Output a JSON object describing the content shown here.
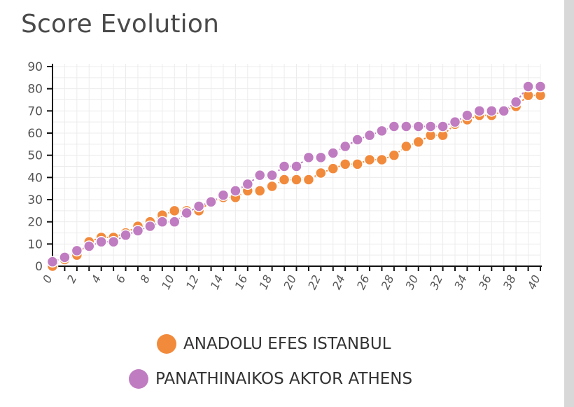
{
  "title": "Score Evolution",
  "chart_data": {
    "type": "line",
    "title": "Score Evolution",
    "xlabel": "",
    "ylabel": "",
    "xlim": [
      0,
      40
    ],
    "ylim": [
      0,
      90
    ],
    "yticks": [
      0,
      10,
      20,
      30,
      40,
      50,
      60,
      70,
      80,
      90
    ],
    "xticks": [
      0,
      2,
      4,
      6,
      8,
      10,
      12,
      14,
      16,
      18,
      20,
      22,
      24,
      26,
      28,
      30,
      32,
      34,
      36,
      38,
      40
    ],
    "grid": true,
    "legend_position": "bottom",
    "series": [
      {
        "name": "ANADOLU EFES ISTANBUL",
        "color": "#f28a3c",
        "x": [
          0,
          1,
          2,
          3,
          4,
          5,
          6,
          7,
          8,
          9,
          10,
          11,
          12,
          13,
          14,
          15,
          16,
          17,
          18,
          19,
          20,
          21,
          22,
          23,
          24,
          25,
          26,
          27,
          28,
          29,
          30,
          31,
          32,
          33,
          34,
          35,
          36,
          37,
          38,
          39,
          40
        ],
        "values": [
          0,
          3,
          5,
          11,
          13,
          13,
          15,
          18,
          20,
          23,
          25,
          25,
          25,
          29,
          31,
          31,
          34,
          34,
          36,
          39,
          39,
          39,
          42,
          44,
          46,
          46,
          48,
          48,
          50,
          54,
          56,
          59,
          59,
          64,
          66,
          68,
          68,
          70,
          72,
          77,
          77
        ]
      },
      {
        "name": "PANATHINAIKOS AKTOR ATHENS",
        "color": "#c07cc1",
        "x": [
          0,
          1,
          2,
          3,
          4,
          5,
          6,
          7,
          8,
          9,
          10,
          11,
          12,
          13,
          14,
          15,
          16,
          17,
          18,
          19,
          20,
          21,
          22,
          23,
          24,
          25,
          26,
          27,
          28,
          29,
          30,
          31,
          32,
          33,
          34,
          35,
          36,
          37,
          38,
          39,
          40
        ],
        "values": [
          2,
          4,
          7,
          9,
          11,
          11,
          14,
          16,
          18,
          20,
          20,
          24,
          27,
          29,
          32,
          34,
          37,
          41,
          41,
          45,
          45,
          49,
          49,
          51,
          54,
          57,
          59,
          61,
          63,
          63,
          63,
          63,
          63,
          65,
          68,
          70,
          70,
          70,
          74,
          81,
          81
        ]
      }
    ]
  }
}
